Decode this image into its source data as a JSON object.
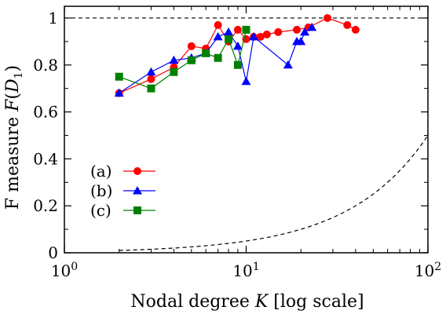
{
  "chart_data": {
    "type": "line",
    "xlabel": "Nodal degree K [log scale]",
    "ylabel": "F measure F(D1)",
    "x_scale": "log",
    "xlim": [
      1,
      100
    ],
    "ylim": [
      0,
      1.05
    ],
    "x_ticks": [
      1,
      10,
      100
    ],
    "x_tick_labels": [
      {
        "base": "10",
        "exp": "0"
      },
      {
        "base": "10",
        "exp": "1"
      },
      {
        "base": "10",
        "exp": "2"
      }
    ],
    "y_ticks": [
      "0",
      "0.2",
      "0.4",
      "0.6",
      "0.8",
      "1"
    ],
    "grid": false,
    "legend_position": "lower-left",
    "series": [
      {
        "name": "(a)",
        "color": "#ff0000",
        "marker": "circle",
        "x": [
          2,
          3,
          4,
          5,
          6,
          7,
          8,
          9,
          10,
          11,
          12,
          13,
          15,
          19,
          22,
          28,
          36,
          40
        ],
        "y": [
          0.68,
          0.74,
          0.79,
          0.88,
          0.87,
          0.97,
          0.9,
          0.95,
          0.91,
          0.92,
          0.92,
          0.93,
          0.94,
          0.95,
          0.96,
          1.0,
          0.97,
          0.95
        ]
      },
      {
        "name": "(b)",
        "color": "#0000ff",
        "marker": "triangle",
        "x": [
          2,
          3,
          4,
          5,
          6,
          7,
          8,
          9,
          10,
          11,
          17,
          19,
          20,
          21,
          23
        ],
        "y": [
          0.68,
          0.77,
          0.82,
          0.83,
          0.85,
          0.92,
          0.94,
          0.88,
          0.73,
          0.92,
          0.8,
          0.9,
          0.9,
          0.94,
          0.96
        ]
      },
      {
        "name": "(c)",
        "color": "#008000",
        "marker": "square",
        "x": [
          2,
          3,
          4,
          5,
          6,
          7,
          8,
          9,
          10
        ],
        "y": [
          0.75,
          0.7,
          0.77,
          0.82,
          0.85,
          0.83,
          0.91,
          0.8,
          0.95
        ]
      }
    ],
    "reference_lines": [
      {
        "style": "dashed",
        "color": "#000000",
        "x": [
          1,
          100
        ],
        "y": [
          1,
          1
        ]
      },
      {
        "style": "dashed",
        "color": "#000000",
        "x": [
          2,
          5,
          10,
          15,
          20,
          30,
          40,
          50,
          60,
          70,
          80,
          90,
          100
        ],
        "y": [
          0.01,
          0.025,
          0.05,
          0.075,
          0.1,
          0.15,
          0.2,
          0.25,
          0.3,
          0.35,
          0.4,
          0.45,
          0.5
        ]
      }
    ]
  }
}
